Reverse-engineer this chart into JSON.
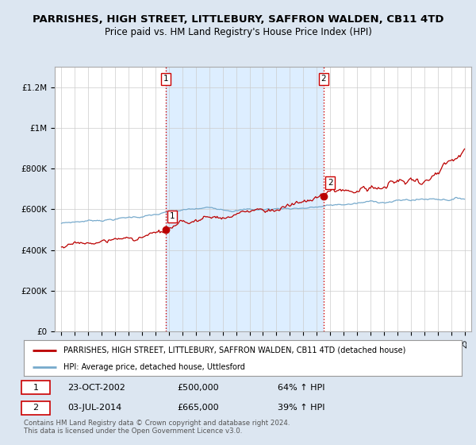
{
  "title": "PARRISHES, HIGH STREET, LITTLEBURY, SAFFRON WALDEN, CB11 4TD",
  "subtitle": "Price paid vs. HM Land Registry's House Price Index (HPI)",
  "ytick_values": [
    0,
    200000,
    400000,
    600000,
    800000,
    1000000,
    1200000
  ],
  "ylim": [
    0,
    1300000
  ],
  "legend_line1": "PARRISHES, HIGH STREET, LITTLEBURY, SAFFRON WALDEN, CB11 4TD (detached house)",
  "legend_line2": "HPI: Average price, detached house, Uttlesford",
  "sale1_date": "23-OCT-2002",
  "sale1_price": 500000,
  "sale2_date": "03-JUL-2014",
  "sale2_price": 665000,
  "sale1_pct": "64% ↑ HPI",
  "sale2_pct": "39% ↑ HPI",
  "copyright_text": "Contains HM Land Registry data © Crown copyright and database right 2024.\nThis data is licensed under the Open Government Licence v3.0.",
  "red_color": "#bb0000",
  "blue_color": "#77aacc",
  "shade_color": "#ddeeff",
  "background_color": "#dce6f1",
  "plot_bg_color": "#ffffff",
  "vline_color": "#cc0000",
  "grid_color": "#cccccc",
  "title_fontsize": 9.5,
  "subtitle_fontsize": 8.5
}
